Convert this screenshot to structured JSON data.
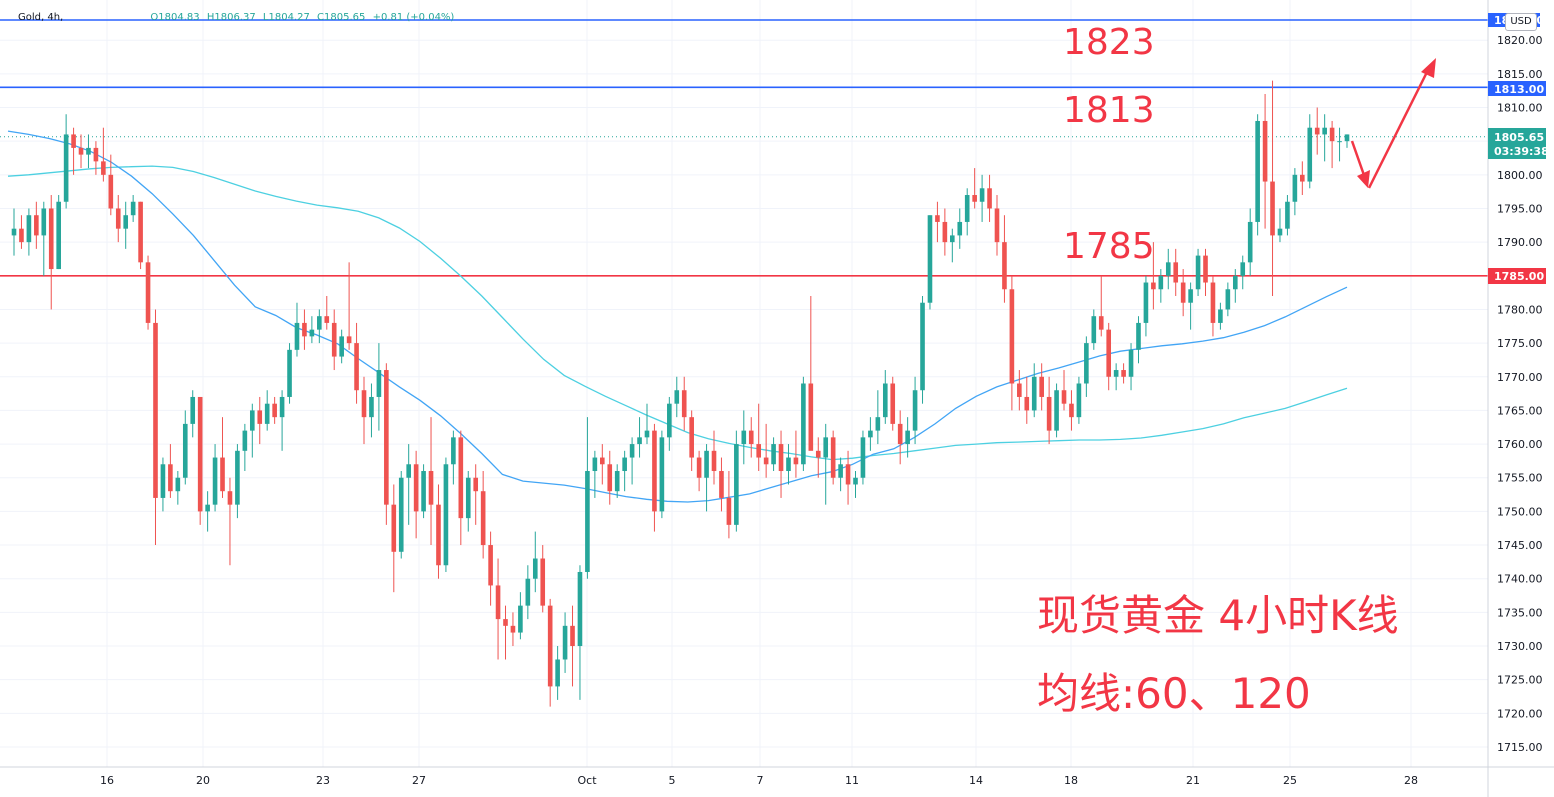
{
  "legend": {
    "symbol": "Gold, 4h,",
    "open": "O1804.83",
    "high": "H1806.37",
    "low": "L1804.27",
    "close": "C1805.65",
    "change": "+0.81 (+0.04%)"
  },
  "currency_button": "USD",
  "colors": {
    "up": "#26a69a",
    "down": "#ef5350",
    "ma60": "#42a5f5",
    "ma120": "#4dd0e1",
    "resistance": "#2962ff",
    "support": "#f23645",
    "annotation": "#f23645"
  },
  "price_axis": {
    "ticks": [
      "1820.00",
      "1815.00",
      "1810.00",
      "1805.00",
      "1800.00",
      "1795.00",
      "1790.00",
      "1785.00",
      "1780.00",
      "1775.00",
      "1770.00",
      "1765.00",
      "1760.00",
      "1755.00",
      "1750.00",
      "1745.00",
      "1740.00",
      "1735.00",
      "1730.00",
      "1725.00",
      "1720.00",
      "1715.00"
    ]
  },
  "time_axis": {
    "labels": [
      "16",
      "20",
      "23",
      "27",
      "Oct",
      "5",
      "7",
      "11",
      "14",
      "18",
      "21",
      "25",
      "28"
    ]
  },
  "price_tags": {
    "top": "1823.00",
    "blue": "1813.00",
    "current": "1805.65",
    "countdown": "03:39:38",
    "red": "1785.00"
  },
  "annotations": {
    "level_1823": "1823",
    "level_1813": "1813",
    "level_1785": "1785",
    "title": "现货黄金 4小时K线",
    "subtitle": "均线:60、120"
  },
  "chart_data": {
    "type": "candlestick",
    "symbol": "Gold",
    "timeframe": "4h",
    "y_range": [
      1711,
      1825
    ],
    "horizontal_levels": [
      {
        "value": 1823,
        "color": "#2962ff"
      },
      {
        "value": 1813,
        "color": "#2962ff"
      },
      {
        "value": 1785,
        "color": "#f23645"
      }
    ],
    "current_price": 1805.65,
    "candles_ohlc": [
      [
        1791,
        1795,
        1788,
        1792
      ],
      [
        1792,
        1794,
        1789,
        1790
      ],
      [
        1790,
        1795,
        1788,
        1794
      ],
      [
        1794,
        1796,
        1789,
        1791
      ],
      [
        1791,
        1796,
        1785,
        1795
      ],
      [
        1795,
        1797,
        1780,
        1786
      ],
      [
        1786,
        1797,
        1786,
        1796
      ],
      [
        1796,
        1809,
        1795,
        1806
      ],
      [
        1806,
        1807,
        1800,
        1804
      ],
      [
        1804,
        1806,
        1801,
        1803
      ],
      [
        1803,
        1806,
        1801,
        1804
      ],
      [
        1804,
        1805,
        1800,
        1802
      ],
      [
        1802,
        1807,
        1799,
        1800
      ],
      [
        1800,
        1803,
        1794,
        1795
      ],
      [
        1795,
        1797,
        1790,
        1792
      ],
      [
        1792,
        1796,
        1789,
        1794
      ],
      [
        1794,
        1797,
        1793,
        1796
      ],
      [
        1796,
        1796,
        1786,
        1787
      ],
      [
        1787,
        1788,
        1777,
        1778
      ],
      [
        1778,
        1780,
        1745,
        1752
      ],
      [
        1752,
        1758,
        1750,
        1757
      ],
      [
        1757,
        1760,
        1752,
        1753
      ],
      [
        1753,
        1756,
        1751,
        1755
      ],
      [
        1755,
        1765,
        1754,
        1763
      ],
      [
        1763,
        1768,
        1761,
        1767
      ],
      [
        1767,
        1767,
        1748,
        1750
      ],
      [
        1750,
        1753,
        1747,
        1751
      ],
      [
        1751,
        1760,
        1750,
        1758
      ],
      [
        1758,
        1764,
        1752,
        1753
      ],
      [
        1753,
        1755,
        1742,
        1751
      ],
      [
        1751,
        1760,
        1749,
        1759
      ],
      [
        1759,
        1763,
        1756,
        1762
      ],
      [
        1762,
        1766,
        1758,
        1765
      ],
      [
        1765,
        1767,
        1760,
        1763
      ],
      [
        1763,
        1768,
        1762,
        1766
      ],
      [
        1766,
        1767,
        1763,
        1764
      ],
      [
        1764,
        1768,
        1759,
        1767
      ],
      [
        1767,
        1775,
        1766,
        1774
      ],
      [
        1774,
        1781,
        1773,
        1778
      ],
      [
        1778,
        1780,
        1774,
        1776
      ],
      [
        1776,
        1779,
        1775,
        1777
      ],
      [
        1777,
        1780,
        1775,
        1779
      ],
      [
        1779,
        1782,
        1777,
        1778
      ],
      [
        1778,
        1780,
        1771,
        1773
      ],
      [
        1773,
        1777,
        1772,
        1776
      ],
      [
        1776,
        1787,
        1774,
        1775
      ],
      [
        1775,
        1778,
        1766,
        1768
      ],
      [
        1768,
        1770,
        1760,
        1764
      ],
      [
        1764,
        1769,
        1761,
        1767
      ],
      [
        1767,
        1775,
        1762,
        1771
      ],
      [
        1771,
        1772,
        1748,
        1751
      ],
      [
        1751,
        1754,
        1738,
        1744
      ],
      [
        1744,
        1756,
        1743,
        1755
      ],
      [
        1755,
        1760,
        1748,
        1757
      ],
      [
        1757,
        1759,
        1746,
        1750
      ],
      [
        1750,
        1757,
        1749,
        1756
      ],
      [
        1756,
        1764,
        1745,
        1751
      ],
      [
        1751,
        1754,
        1740,
        1742
      ],
      [
        1742,
        1758,
        1741,
        1757
      ],
      [
        1757,
        1762,
        1754,
        1761
      ],
      [
        1761,
        1762,
        1745,
        1749
      ],
      [
        1749,
        1756,
        1747,
        1755
      ],
      [
        1755,
        1757,
        1748,
        1753
      ],
      [
        1753,
        1756,
        1743,
        1745
      ],
      [
        1745,
        1747,
        1736,
        1739
      ],
      [
        1739,
        1743,
        1728,
        1734
      ],
      [
        1734,
        1736,
        1728,
        1733
      ],
      [
        1733,
        1735,
        1730,
        1732
      ],
      [
        1732,
        1738,
        1731,
        1736
      ],
      [
        1736,
        1742,
        1734,
        1740
      ],
      [
        1740,
        1747,
        1738,
        1743
      ],
      [
        1743,
        1745,
        1735,
        1736
      ],
      [
        1736,
        1737,
        1721,
        1724
      ],
      [
        1724,
        1730,
        1722,
        1728
      ],
      [
        1728,
        1735,
        1726,
        1733
      ],
      [
        1733,
        1736,
        1724,
        1730
      ],
      [
        1730,
        1742,
        1722,
        1741
      ],
      [
        1741,
        1764,
        1740,
        1756
      ],
      [
        1756,
        1759,
        1752,
        1758
      ],
      [
        1758,
        1760,
        1754,
        1757
      ],
      [
        1757,
        1759,
        1751,
        1753
      ],
      [
        1753,
        1757,
        1752,
        1756
      ],
      [
        1756,
        1759,
        1753,
        1758
      ],
      [
        1758,
        1761,
        1754,
        1760
      ],
      [
        1760,
        1764,
        1758,
        1761
      ],
      [
        1761,
        1766,
        1760,
        1762
      ],
      [
        1762,
        1763,
        1747,
        1750
      ],
      [
        1750,
        1762,
        1749,
        1761
      ],
      [
        1761,
        1767,
        1759,
        1766
      ],
      [
        1766,
        1770,
        1764,
        1768
      ],
      [
        1768,
        1770,
        1762,
        1764
      ],
      [
        1764,
        1765,
        1756,
        1758
      ],
      [
        1758,
        1759,
        1753,
        1755
      ],
      [
        1755,
        1760,
        1750,
        1759
      ],
      [
        1759,
        1762,
        1754,
        1756
      ],
      [
        1756,
        1758,
        1750,
        1752
      ],
      [
        1752,
        1756,
        1746,
        1748
      ],
      [
        1748,
        1762,
        1747,
        1760
      ],
      [
        1760,
        1765,
        1757,
        1762
      ],
      [
        1762,
        1764,
        1758,
        1760
      ],
      [
        1760,
        1766,
        1756,
        1758
      ],
      [
        1758,
        1763,
        1755,
        1757
      ],
      [
        1757,
        1761,
        1756,
        1760
      ],
      [
        1760,
        1762,
        1752,
        1756
      ],
      [
        1756,
        1760,
        1754,
        1758
      ],
      [
        1758,
        1762,
        1755,
        1757
      ],
      [
        1757,
        1770,
        1756,
        1769
      ],
      [
        1769,
        1782,
        1767,
        1759
      ],
      [
        1759,
        1761,
        1755,
        1758
      ],
      [
        1758,
        1763,
        1751,
        1761
      ],
      [
        1761,
        1762,
        1754,
        1755
      ],
      [
        1755,
        1758,
        1753,
        1757
      ],
      [
        1757,
        1759,
        1751,
        1754
      ],
      [
        1754,
        1756,
        1752,
        1755
      ],
      [
        1755,
        1762,
        1754,
        1761
      ],
      [
        1761,
        1764,
        1759,
        1762
      ],
      [
        1762,
        1768,
        1760,
        1764
      ],
      [
        1764,
        1771,
        1763,
        1769
      ],
      [
        1769,
        1770,
        1762,
        1763
      ],
      [
        1763,
        1765,
        1757,
        1760
      ],
      [
        1760,
        1764,
        1758,
        1762
      ],
      [
        1762,
        1770,
        1760,
        1768
      ],
      [
        1768,
        1782,
        1766,
        1781
      ],
      [
        1781,
        1794,
        1780,
        1794
      ],
      [
        1794,
        1796,
        1790,
        1793
      ],
      [
        1793,
        1795,
        1788,
        1790
      ],
      [
        1790,
        1792,
        1787,
        1791
      ],
      [
        1791,
        1795,
        1789,
        1793
      ],
      [
        1793,
        1798,
        1791,
        1797
      ],
      [
        1797,
        1801,
        1795,
        1796
      ],
      [
        1796,
        1800,
        1793,
        1798
      ],
      [
        1798,
        1800,
        1793,
        1795
      ],
      [
        1795,
        1797,
        1788,
        1790
      ],
      [
        1790,
        1794,
        1781,
        1783
      ],
      [
        1783,
        1785,
        1765,
        1769
      ],
      [
        1769,
        1771,
        1765,
        1767
      ],
      [
        1767,
        1770,
        1763,
        1765
      ],
      [
        1765,
        1772,
        1764,
        1770
      ],
      [
        1770,
        1772,
        1765,
        1767
      ],
      [
        1767,
        1770,
        1760,
        1762
      ],
      [
        1762,
        1769,
        1761,
        1768
      ],
      [
        1768,
        1771,
        1765,
        1766
      ],
      [
        1766,
        1768,
        1762,
        1764
      ],
      [
        1764,
        1770,
        1763,
        1769
      ],
      [
        1769,
        1776,
        1767,
        1775
      ],
      [
        1775,
        1780,
        1774,
        1779
      ],
      [
        1779,
        1785,
        1776,
        1777
      ],
      [
        1777,
        1778,
        1768,
        1770
      ],
      [
        1770,
        1772,
        1768,
        1771
      ],
      [
        1771,
        1772,
        1769,
        1770
      ],
      [
        1770,
        1775,
        1768,
        1774
      ],
      [
        1774,
        1779,
        1772,
        1778
      ],
      [
        1778,
        1785,
        1776,
        1784
      ],
      [
        1784,
        1790,
        1780,
        1783
      ],
      [
        1783,
        1786,
        1781,
        1785
      ],
      [
        1785,
        1789,
        1783,
        1787
      ],
      [
        1787,
        1789,
        1782,
        1784
      ],
      [
        1784,
        1786,
        1779,
        1781
      ],
      [
        1781,
        1784,
        1777,
        1783
      ],
      [
        1783,
        1789,
        1782,
        1788
      ],
      [
        1788,
        1789,
        1782,
        1784
      ],
      [
        1784,
        1785,
        1776,
        1778
      ],
      [
        1778,
        1781,
        1777,
        1780
      ],
      [
        1780,
        1784,
        1779,
        1783
      ],
      [
        1783,
        1786,
        1781,
        1785
      ],
      [
        1785,
        1788,
        1783,
        1787
      ],
      [
        1787,
        1795,
        1785,
        1793
      ],
      [
        1793,
        1809,
        1791,
        1808
      ],
      [
        1808,
        1812,
        1792,
        1799
      ],
      [
        1799,
        1814,
        1782,
        1791
      ],
      [
        1791,
        1795,
        1790,
        1792
      ],
      [
        1792,
        1797,
        1791,
        1796
      ],
      [
        1796,
        1801,
        1794,
        1800
      ],
      [
        1800,
        1802,
        1797,
        1799
      ],
      [
        1799,
        1809,
        1798,
        1807
      ],
      [
        1807,
        1810,
        1803,
        1806
      ],
      [
        1806,
        1809,
        1802,
        1807
      ],
      [
        1807,
        1808,
        1801,
        1805
      ],
      [
        1805,
        1807,
        1802,
        1805
      ],
      [
        1805,
        1806,
        1804,
        1806
      ]
    ],
    "ma60": [
      1806.5,
      1806,
      1805.4,
      1804.6,
      1803.5,
      1801.9,
      1799.8,
      1797.2,
      1794.2,
      1791,
      1787.3,
      1783.6,
      1780.4,
      1779.1,
      1777.3,
      1776.2,
      1774.9,
      1772.7,
      1770.6,
      1768.5,
      1766.5,
      1764.2,
      1761.5,
      1758.6,
      1755.5,
      1754.5,
      1754.2,
      1753.9,
      1753.4,
      1752.8,
      1752.2,
      1751.8,
      1751.5,
      1751.4,
      1751.6,
      1752.1,
      1752.6,
      1753.5,
      1754.4,
      1755.3,
      1755.9,
      1757,
      1758.5,
      1759.3,
      1761,
      1763,
      1765.3,
      1767.1,
      1768.5,
      1769.5,
      1770.5,
      1771.3,
      1772.2,
      1773.1,
      1773.8,
      1774.2,
      1774.6,
      1774.9,
      1775.3,
      1775.8,
      1776.6,
      1777.6,
      1778.9,
      1780.4,
      1781.9,
      1783.3
    ],
    "ma120": [
      1799.8,
      1800,
      1800.3,
      1800.6,
      1800.9,
      1801.1,
      1801.2,
      1801.3,
      1801.1,
      1800.5,
      1799.6,
      1798.6,
      1797.6,
      1796.8,
      1796.1,
      1795.5,
      1795.1,
      1794.6,
      1793.6,
      1792.1,
      1790.1,
      1787.6,
      1784.9,
      1782,
      1778.8,
      1775.6,
      1772.6,
      1770.2,
      1768.6,
      1767.1,
      1765.7,
      1764.3,
      1763,
      1761.7,
      1760.8,
      1760.1,
      1759.5,
      1759,
      1758.6,
      1758.1,
      1757.7,
      1757.9,
      1758.3,
      1758.6,
      1759,
      1759.4,
      1759.8,
      1760,
      1760.2,
      1760.3,
      1760.4,
      1760.5,
      1760.6,
      1760.6,
      1760.7,
      1760.9,
      1761.3,
      1761.8,
      1762.3,
      1763,
      1763.9,
      1764.6,
      1765.3,
      1766.3,
      1767.3,
      1768.3
    ]
  }
}
